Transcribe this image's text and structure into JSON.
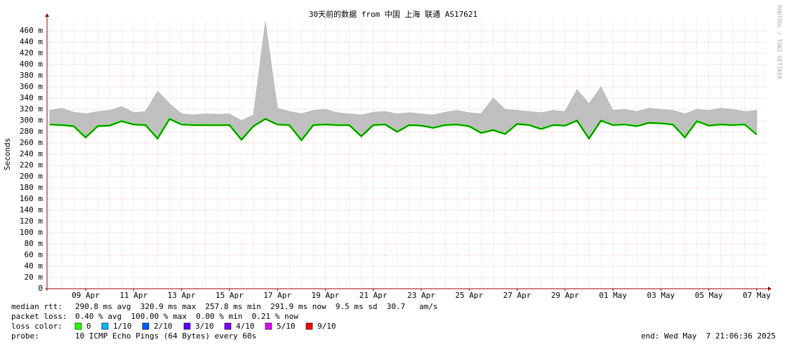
{
  "chart_data": {
    "type": "line",
    "title": "30天前的数据 from 中国 上海 联通 AS17621",
    "ylabel": "Seconds",
    "watermark": "RRDTOOL / TOBI OETIKER",
    "categories": [
      null,
      null,
      null,
      "09 Apr",
      null,
      null,
      null,
      "11 Apr",
      null,
      null,
      null,
      "13 Apr",
      null,
      null,
      null,
      "15 Apr",
      null,
      null,
      null,
      "17 Apr",
      null,
      null,
      null,
      "19 Apr",
      null,
      null,
      null,
      "21 Apr",
      null,
      null,
      null,
      "23 Apr",
      null,
      null,
      null,
      "25 Apr",
      null,
      null,
      null,
      "27 Apr",
      null,
      null,
      null,
      "29 Apr",
      null,
      null,
      null,
      "01 May",
      null,
      null,
      null,
      "03 May",
      null,
      null,
      null,
      "05 May",
      null,
      null,
      null,
      "07 May"
    ],
    "series": [
      {
        "color": "#26ff00",
        "values": [
          293,
          292,
          290,
          270,
          290,
          291,
          299,
          293,
          292,
          268,
          303,
          293,
          292,
          292,
          292,
          292,
          266,
          290,
          303,
          293,
          292,
          265,
          292,
          293,
          292,
          292,
          272,
          292,
          293,
          280,
          292,
          291,
          287,
          292,
          293,
          290,
          278,
          283,
          276,
          294,
          292,
          285,
          292,
          291,
          300,
          268,
          300,
          292,
          293,
          290,
          296,
          295,
          293,
          270,
          299,
          291,
          293,
          292,
          293,
          275
        ]
      },
      {
        "color": "#c0c0c0",
        "values": [
          318,
          322,
          315,
          312,
          316,
          318,
          325,
          314,
          316,
          352,
          330,
          312,
          310,
          312,
          311,
          312,
          300,
          310,
          476,
          322,
          316,
          312,
          318,
          320,
          314,
          312,
          310,
          315,
          316,
          312,
          314,
          312,
          310,
          315,
          318,
          314,
          312,
          340,
          320,
          318,
          316,
          314,
          318,
          316,
          355,
          330,
          360,
          318,
          320,
          316,
          322,
          320,
          318,
          312,
          320,
          318,
          322,
          320,
          316,
          318
        ]
      }
    ],
    "ylim": [
      0,
      480
    ],
    "yticks": [
      0,
      {
        "value": 20,
        "label": "20 m"
      },
      {
        "value": 40,
        "label": "40 m"
      },
      {
        "value": 60,
        "label": "60 m"
      },
      {
        "value": 80,
        "label": "80 m"
      },
      {
        "value": 100,
        "label": "100 m"
      },
      {
        "value": 120,
        "label": "120 m"
      },
      {
        "value": 140,
        "label": "140 m"
      },
      {
        "value": 160,
        "label": "160 m"
      },
      {
        "value": 180,
        "label": "180 m"
      },
      {
        "value": 200,
        "label": "200 m"
      },
      {
        "value": 220,
        "label": "220 m"
      },
      {
        "value": 240,
        "label": "240 m"
      },
      {
        "value": 260,
        "label": "260 m"
      },
      {
        "value": 280,
        "label": "280 m"
      },
      {
        "value": 300,
        "label": "300 m"
      },
      {
        "value": 320,
        "label": "320 m"
      },
      {
        "value": 340,
        "label": "340 m"
      },
      {
        "value": 360,
        "label": "360 m"
      },
      {
        "value": 380,
        "label": "380 m"
      },
      {
        "value": 400,
        "label": "400 m"
      },
      {
        "value": 420,
        "label": "420 m"
      },
      {
        "value": 440,
        "label": "440 m"
      },
      {
        "value": 460,
        "label": "460 m"
      }
    ],
    "grid": true,
    "median_rtt": {
      "label": "median rtt:",
      "text": "290.8 ms avg  320.9 ms max  257.8 ms min  291.9 ms now  9.5 ms sd  30.7   am/s"
    },
    "packet_loss": {
      "label": "packet loss:",
      "text": "0.40 % avg  100.00 % max  0.00 % min  0.21 % now"
    },
    "loss_legend": {
      "label": "loss color:",
      "items": [
        {
          "label": "0",
          "color": "#26ff00"
        },
        {
          "label": "1/10",
          "color": "#00b8ff"
        },
        {
          "label": "2/10",
          "color": "#0059ff"
        },
        {
          "label": "3/10",
          "color": "#5e00ff"
        },
        {
          "label": "4/10",
          "color": "#7e00ff"
        },
        {
          "label": "5/10",
          "color": "#dd00ff"
        },
        {
          "label": "9/10",
          "color": "#ff0000"
        }
      ]
    },
    "probe": {
      "label": "probe:",
      "text": "10 ICMP Echo Pings (64 Bytes) every 60s"
    },
    "end": "end: Wed May  7 21:06:36 2025"
  }
}
